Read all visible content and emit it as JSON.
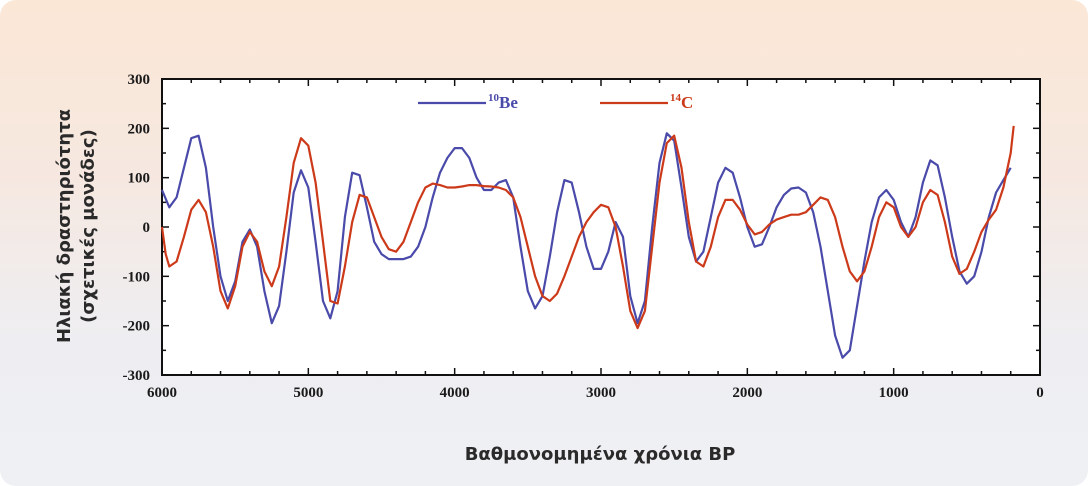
{
  "chart_data": {
    "type": "line",
    "title": "",
    "ylabel_line1": "Ηλιακή δραστηριότητα",
    "ylabel_line2": "(σχετικές μονάδες)",
    "xlabel": "Βαθμονομημένα χρόνια BP",
    "xlim": [
      6000,
      0
    ],
    "ylim": [
      -300,
      300
    ],
    "x_ticks": [
      6000,
      5000,
      4000,
      3000,
      2000,
      1000,
      0
    ],
    "y_ticks": [
      300,
      200,
      100,
      0,
      -100,
      -200,
      -300
    ],
    "grid": false,
    "legend_position": "top-center",
    "series": [
      {
        "name_sup": "10",
        "name_base": "Be",
        "color": "#4a4aaa",
        "points": [
          [
            6000,
            75
          ],
          [
            5950,
            40
          ],
          [
            5900,
            60
          ],
          [
            5800,
            180
          ],
          [
            5750,
            185
          ],
          [
            5700,
            120
          ],
          [
            5650,
            0
          ],
          [
            5600,
            -100
          ],
          [
            5550,
            -150
          ],
          [
            5500,
            -110
          ],
          [
            5450,
            -30
          ],
          [
            5400,
            -5
          ],
          [
            5350,
            -40
          ],
          [
            5300,
            -130
          ],
          [
            5250,
            -195
          ],
          [
            5200,
            -160
          ],
          [
            5150,
            -50
          ],
          [
            5100,
            70
          ],
          [
            5050,
            115
          ],
          [
            5000,
            80
          ],
          [
            4950,
            -30
          ],
          [
            4900,
            -150
          ],
          [
            4850,
            -185
          ],
          [
            4800,
            -130
          ],
          [
            4750,
            20
          ],
          [
            4700,
            110
          ],
          [
            4650,
            105
          ],
          [
            4600,
            40
          ],
          [
            4550,
            -30
          ],
          [
            4500,
            -55
          ],
          [
            4450,
            -65
          ],
          [
            4400,
            -65
          ],
          [
            4350,
            -65
          ],
          [
            4300,
            -60
          ],
          [
            4250,
            -40
          ],
          [
            4200,
            0
          ],
          [
            4150,
            60
          ],
          [
            4100,
            110
          ],
          [
            4050,
            140
          ],
          [
            4000,
            160
          ],
          [
            3950,
            160
          ],
          [
            3900,
            140
          ],
          [
            3850,
            100
          ],
          [
            3800,
            75
          ],
          [
            3750,
            75
          ],
          [
            3700,
            90
          ],
          [
            3650,
            95
          ],
          [
            3600,
            60
          ],
          [
            3550,
            -40
          ],
          [
            3500,
            -130
          ],
          [
            3450,
            -165
          ],
          [
            3400,
            -140
          ],
          [
            3350,
            -60
          ],
          [
            3300,
            30
          ],
          [
            3250,
            95
          ],
          [
            3200,
            90
          ],
          [
            3150,
            30
          ],
          [
            3100,
            -40
          ],
          [
            3050,
            -85
          ],
          [
            3000,
            -85
          ],
          [
            2950,
            -50
          ],
          [
            2900,
            10
          ],
          [
            2850,
            -20
          ],
          [
            2800,
            -140
          ],
          [
            2750,
            -195
          ],
          [
            2700,
            -150
          ],
          [
            2650,
            0
          ],
          [
            2600,
            130
          ],
          [
            2550,
            190
          ],
          [
            2500,
            175
          ],
          [
            2450,
            80
          ],
          [
            2400,
            -20
          ],
          [
            2350,
            -70
          ],
          [
            2300,
            -50
          ],
          [
            2250,
            20
          ],
          [
            2200,
            90
          ],
          [
            2150,
            120
          ],
          [
            2100,
            110
          ],
          [
            2050,
            60
          ],
          [
            2000,
            0
          ],
          [
            1950,
            -40
          ],
          [
            1900,
            -35
          ],
          [
            1850,
            0
          ],
          [
            1800,
            40
          ],
          [
            1750,
            65
          ],
          [
            1700,
            78
          ],
          [
            1650,
            80
          ],
          [
            1600,
            70
          ],
          [
            1550,
            30
          ],
          [
            1500,
            -40
          ],
          [
            1450,
            -130
          ],
          [
            1400,
            -220
          ],
          [
            1350,
            -265
          ],
          [
            1300,
            -250
          ],
          [
            1250,
            -160
          ],
          [
            1200,
            -70
          ],
          [
            1150,
            10
          ],
          [
            1100,
            60
          ],
          [
            1050,
            75
          ],
          [
            1000,
            55
          ],
          [
            950,
            10
          ],
          [
            900,
            -20
          ],
          [
            850,
            20
          ],
          [
            800,
            90
          ],
          [
            750,
            135
          ],
          [
            700,
            125
          ],
          [
            650,
            60
          ],
          [
            600,
            -20
          ],
          [
            550,
            -90
          ],
          [
            500,
            -115
          ],
          [
            450,
            -100
          ],
          [
            400,
            -50
          ],
          [
            350,
            20
          ],
          [
            300,
            70
          ],
          [
            250,
            95
          ],
          [
            200,
            120
          ]
        ]
      },
      {
        "name_sup": "14",
        "name_base": "C",
        "color": "#cc3a1a",
        "points": [
          [
            6000,
            0
          ],
          [
            5975,
            -55
          ],
          [
            5950,
            -80
          ],
          [
            5900,
            -70
          ],
          [
            5850,
            -20
          ],
          [
            5800,
            35
          ],
          [
            5750,
            55
          ],
          [
            5700,
            30
          ],
          [
            5650,
            -40
          ],
          [
            5600,
            -130
          ],
          [
            5550,
            -165
          ],
          [
            5500,
            -120
          ],
          [
            5450,
            -40
          ],
          [
            5400,
            -10
          ],
          [
            5350,
            -30
          ],
          [
            5300,
            -90
          ],
          [
            5250,
            -120
          ],
          [
            5200,
            -80
          ],
          [
            5150,
            20
          ],
          [
            5100,
            130
          ],
          [
            5050,
            180
          ],
          [
            5000,
            165
          ],
          [
            4950,
            90
          ],
          [
            4900,
            -30
          ],
          [
            4850,
            -150
          ],
          [
            4800,
            -155
          ],
          [
            4750,
            -80
          ],
          [
            4700,
            10
          ],
          [
            4650,
            65
          ],
          [
            4600,
            60
          ],
          [
            4550,
            20
          ],
          [
            4500,
            -20
          ],
          [
            4450,
            -45
          ],
          [
            4400,
            -50
          ],
          [
            4350,
            -30
          ],
          [
            4300,
            10
          ],
          [
            4250,
            50
          ],
          [
            4200,
            80
          ],
          [
            4150,
            88
          ],
          [
            4100,
            85
          ],
          [
            4050,
            80
          ],
          [
            4000,
            80
          ],
          [
            3950,
            82
          ],
          [
            3900,
            85
          ],
          [
            3850,
            85
          ],
          [
            3800,
            83
          ],
          [
            3750,
            82
          ],
          [
            3700,
            80
          ],
          [
            3650,
            75
          ],
          [
            3600,
            60
          ],
          [
            3550,
            20
          ],
          [
            3500,
            -40
          ],
          [
            3450,
            -100
          ],
          [
            3400,
            -140
          ],
          [
            3350,
            -150
          ],
          [
            3300,
            -135
          ],
          [
            3250,
            -100
          ],
          [
            3200,
            -60
          ],
          [
            3150,
            -20
          ],
          [
            3100,
            10
          ],
          [
            3050,
            30
          ],
          [
            3000,
            45
          ],
          [
            2950,
            40
          ],
          [
            2900,
            0
          ],
          [
            2850,
            -80
          ],
          [
            2800,
            -170
          ],
          [
            2750,
            -205
          ],
          [
            2700,
            -170
          ],
          [
            2650,
            -40
          ],
          [
            2600,
            90
          ],
          [
            2550,
            170
          ],
          [
            2500,
            185
          ],
          [
            2450,
            120
          ],
          [
            2400,
            10
          ],
          [
            2350,
            -70
          ],
          [
            2300,
            -80
          ],
          [
            2250,
            -40
          ],
          [
            2200,
            20
          ],
          [
            2150,
            55
          ],
          [
            2100,
            55
          ],
          [
            2050,
            35
          ],
          [
            2000,
            5
          ],
          [
            1950,
            -15
          ],
          [
            1900,
            -10
          ],
          [
            1850,
            5
          ],
          [
            1800,
            15
          ],
          [
            1750,
            20
          ],
          [
            1700,
            25
          ],
          [
            1650,
            25
          ],
          [
            1600,
            30
          ],
          [
            1550,
            45
          ],
          [
            1500,
            60
          ],
          [
            1450,
            55
          ],
          [
            1400,
            20
          ],
          [
            1350,
            -40
          ],
          [
            1300,
            -90
          ],
          [
            1250,
            -110
          ],
          [
            1200,
            -90
          ],
          [
            1150,
            -40
          ],
          [
            1100,
            20
          ],
          [
            1050,
            50
          ],
          [
            1000,
            40
          ],
          [
            950,
            0
          ],
          [
            900,
            -20
          ],
          [
            850,
            0
          ],
          [
            800,
            50
          ],
          [
            750,
            75
          ],
          [
            700,
            65
          ],
          [
            650,
            10
          ],
          [
            600,
            -60
          ],
          [
            550,
            -95
          ],
          [
            500,
            -85
          ],
          [
            450,
            -50
          ],
          [
            400,
            -10
          ],
          [
            350,
            15
          ],
          [
            300,
            35
          ],
          [
            250,
            80
          ],
          [
            200,
            150
          ],
          [
            180,
            205
          ]
        ]
      }
    ]
  }
}
